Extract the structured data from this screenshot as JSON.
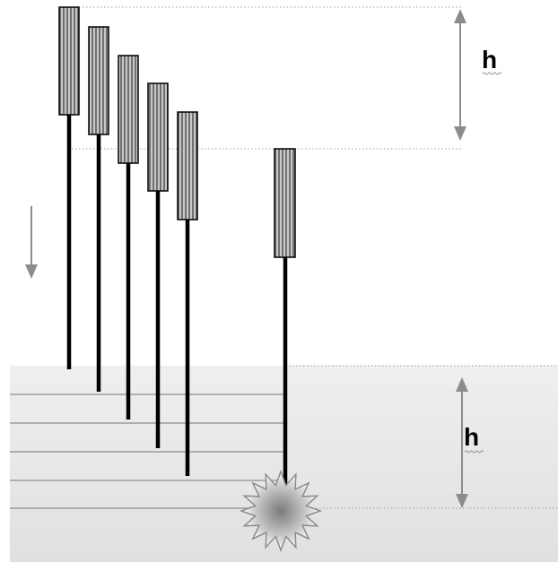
{
  "labels": {
    "top_height": "h",
    "bottom_height": "h"
  },
  "colors": {
    "background": "#ffffff",
    "ground_top": "#efefef",
    "ground_bottom": "#e0e0e0",
    "rod": "#000000",
    "weight_stripe_light": "#cfcfcf",
    "weight_stripe_dark": "#6f6f6f",
    "arrow": "#8c8c8c",
    "dotted_line": "#9a9a9a",
    "layer_line": "#8c8c8c",
    "burst_center": "#808080"
  },
  "icons": {
    "motion_arrow": "down-arrow-icon",
    "impact": "starburst-icon"
  }
}
